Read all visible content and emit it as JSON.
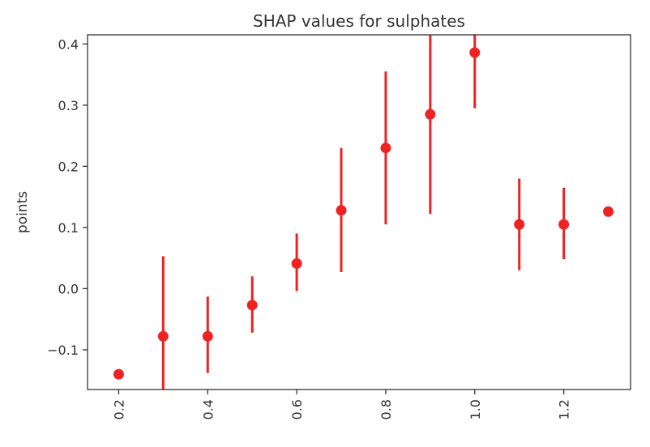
{
  "chart_data": {
    "type": "scatter",
    "title": "SHAP values for sulphates",
    "xlabel": "",
    "ylabel": "points",
    "x_tick_labels": [
      "0.2",
      "0.4",
      "0.6",
      "0.8",
      "1.0",
      "1.2"
    ],
    "x_ticks": [
      0.2,
      0.4,
      0.6,
      0.8,
      1.0,
      1.2
    ],
    "y_tick_labels": [
      "−0.1",
      "0.0",
      "0.1",
      "0.2",
      "0.3",
      "0.4"
    ],
    "y_ticks": [
      -0.1,
      0.0,
      0.1,
      0.2,
      0.3,
      0.4
    ],
    "xlim": [
      0.13,
      1.35
    ],
    "ylim": [
      -0.165,
      0.415
    ],
    "grid": false,
    "x_tick_rotation": 90,
    "color": "#ee2222",
    "points": [
      {
        "x": 0.2,
        "y": -0.14,
        "lo": -0.14,
        "hi": -0.14
      },
      {
        "x": 0.3,
        "y": -0.078,
        "lo": -0.165,
        "hi": 0.053
      },
      {
        "x": 0.4,
        "y": -0.078,
        "lo": -0.138,
        "hi": -0.013
      },
      {
        "x": 0.5,
        "y": -0.027,
        "lo": -0.072,
        "hi": 0.02
      },
      {
        "x": 0.6,
        "y": 0.041,
        "lo": -0.004,
        "hi": 0.09
      },
      {
        "x": 0.7,
        "y": 0.128,
        "lo": 0.027,
        "hi": 0.23
      },
      {
        "x": 0.8,
        "y": 0.23,
        "lo": 0.105,
        "hi": 0.355
      },
      {
        "x": 0.9,
        "y": 0.285,
        "lo": 0.122,
        "hi": 0.415
      },
      {
        "x": 1.0,
        "y": 0.386,
        "lo": 0.295,
        "hi": 0.415
      },
      {
        "x": 1.1,
        "y": 0.105,
        "lo": 0.03,
        "hi": 0.18
      },
      {
        "x": 1.2,
        "y": 0.105,
        "lo": 0.048,
        "hi": 0.165
      },
      {
        "x": 1.3,
        "y": 0.126,
        "lo": 0.12,
        "hi": 0.132
      }
    ]
  }
}
